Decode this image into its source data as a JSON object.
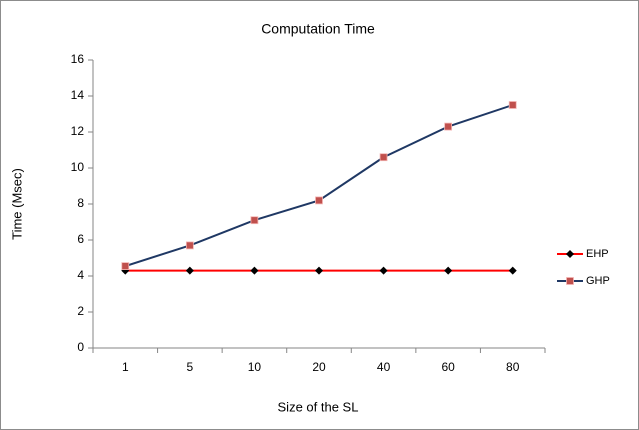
{
  "chart_data": {
    "type": "line",
    "title": "Computation Time",
    "x_label": "Size of the SL",
    "y_label": "Time (Msec)",
    "categories": [
      "1",
      "5",
      "10",
      "20",
      "40",
      "60",
      "80"
    ],
    "series": [
      {
        "name": "EHP",
        "color": "#ff0000",
        "marker_color": "#000000",
        "marker": "diamond",
        "values": [
          4.3,
          4.3,
          4.3,
          4.3,
          4.3,
          4.3,
          4.3
        ]
      },
      {
        "name": "GHP",
        "color": "#1f3864",
        "marker_color": "#c0504d",
        "marker": "square",
        "values": [
          4.55,
          5.7,
          7.1,
          8.2,
          10.6,
          12.3,
          13.5
        ]
      }
    ],
    "ylim": [
      0,
      16
    ],
    "yticks": [
      0,
      2,
      4,
      6,
      8,
      10,
      12,
      14,
      16
    ],
    "grid": false,
    "legend": "right"
  }
}
